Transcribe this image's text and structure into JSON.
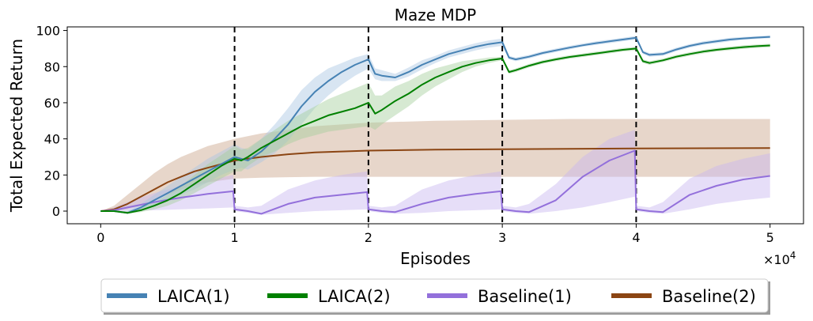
{
  "chart_data": {
    "type": "line",
    "title": "Maze MDP",
    "xlabel": "Episodes",
    "ylabel": "Total Expected Return",
    "x_multiplier_label": "×10",
    "x_multiplier_exp": "4",
    "xlim": [
      -0.25,
      5.25
    ],
    "ylim": [
      -7,
      102
    ],
    "xticks": [
      0,
      1,
      2,
      3,
      4,
      5
    ],
    "xtick_labels": [
      "0",
      "1",
      "2",
      "3",
      "4",
      "5"
    ],
    "yticks": [
      0,
      20,
      40,
      60,
      80,
      100
    ],
    "ytick_labels": [
      "0",
      "20",
      "40",
      "60",
      "80",
      "100"
    ],
    "vlines": [
      1,
      2,
      3,
      4
    ],
    "grid": false,
    "legend_position": "bottom-center-outside",
    "series": [
      {
        "name": "Baseline(2)",
        "color": "#8b4513",
        "band_color": "#c9a48a",
        "x": [
          0,
          0.1,
          0.2,
          0.3,
          0.4,
          0.5,
          0.6,
          0.7,
          0.8,
          0.9,
          1.0,
          1.2,
          1.4,
          1.6,
          1.8,
          2.0,
          2.5,
          3.0,
          3.5,
          4.0,
          4.5,
          5.0
        ],
        "y": [
          0,
          1,
          4,
          8,
          12,
          16,
          19,
          22,
          24,
          26,
          28,
          30,
          31.5,
          32.5,
          33,
          33.5,
          34,
          34.3,
          34.5,
          34.7,
          34.8,
          34.9
        ],
        "lower": [
          0,
          0,
          1,
          3,
          6,
          9,
          12,
          14,
          16,
          17,
          18,
          18.5,
          18.8,
          19,
          19,
          19,
          19,
          19,
          19,
          19,
          19,
          19
        ],
        "upper": [
          0,
          3,
          9,
          15,
          21,
          26,
          30,
          33,
          36,
          38,
          40,
          43,
          45,
          47,
          48,
          49,
          50,
          50.5,
          51,
          51,
          51,
          51
        ]
      },
      {
        "name": "Baseline(1)",
        "color": "#9370db",
        "band_color": "#c8b6f0",
        "x": [
          0,
          0.1,
          0.2,
          0.4,
          0.6,
          0.8,
          0.99,
          1.0,
          1.1,
          1.2,
          1.4,
          1.6,
          1.8,
          1.99,
          2.0,
          2.1,
          2.2,
          2.4,
          2.6,
          2.8,
          2.99,
          3.0,
          3.1,
          3.2,
          3.4,
          3.6,
          3.8,
          3.99,
          4.0,
          4.1,
          4.2,
          4.4,
          4.6,
          4.8,
          5.0
        ],
        "y": [
          0,
          0.5,
          2,
          5,
          7.5,
          9.5,
          11,
          1,
          0,
          -1.5,
          4,
          7.5,
          9,
          10.5,
          1,
          0,
          -0.5,
          4,
          7.5,
          9.5,
          11,
          1,
          0,
          -0.5,
          6,
          19,
          28,
          33.5,
          1,
          0,
          -0.5,
          9,
          14,
          17.5,
          19.5
        ],
        "lower": [
          0,
          0,
          0,
          0.5,
          1,
          1.5,
          2,
          0,
          -1,
          -2,
          -1,
          0,
          0.5,
          1,
          0,
          -1,
          -1.5,
          -1,
          0,
          0.5,
          1,
          0,
          -1,
          -1.5,
          0,
          2,
          5,
          8,
          0,
          -1,
          -1.5,
          1,
          4,
          6,
          7.5
        ],
        "upper": [
          0,
          2,
          5,
          10,
          14,
          17,
          20,
          3,
          2,
          3,
          12,
          17,
          20,
          22,
          3,
          2,
          3,
          12,
          17,
          20,
          22,
          3,
          2,
          4,
          15,
          30,
          40,
          45,
          3,
          2,
          5,
          18,
          25,
          29,
          32
        ]
      },
      {
        "name": "LAICA(1)",
        "color": "#4682b4",
        "band_color": "#a9c6e3",
        "x": [
          0,
          0.1,
          0.2,
          0.3,
          0.4,
          0.5,
          0.6,
          0.7,
          0.8,
          0.9,
          1.0,
          1.05,
          1.1,
          1.2,
          1.3,
          1.4,
          1.5,
          1.6,
          1.7,
          1.8,
          1.9,
          2.0,
          2.05,
          2.1,
          2.2,
          2.3,
          2.4,
          2.5,
          2.6,
          2.7,
          2.8,
          2.9,
          3.0,
          3.05,
          3.1,
          3.2,
          3.3,
          3.4,
          3.5,
          3.6,
          3.7,
          3.8,
          3.9,
          4.0,
          4.05,
          4.1,
          4.2,
          4.3,
          4.4,
          4.5,
          4.6,
          4.7,
          4.8,
          4.9,
          5.0
        ],
        "y": [
          0,
          0,
          -1,
          2,
          6,
          10,
          14,
          18,
          22,
          26,
          30,
          29,
          28,
          33,
          40,
          48,
          58,
          66,
          72,
          77,
          81,
          84,
          76,
          75,
          74,
          77,
          81,
          84,
          87,
          89,
          91,
          92.5,
          93.5,
          85,
          84,
          85.5,
          87.5,
          89,
          90.5,
          91.8,
          93,
          94,
          95,
          96,
          88,
          86.5,
          87,
          89.5,
          91.5,
          93,
          94,
          95,
          95.6,
          96.1,
          96.5
        ],
        "lower": [
          0,
          0,
          -1.5,
          0,
          3,
          6,
          9,
          12,
          16,
          20,
          23,
          24,
          23,
          27,
          32,
          39,
          48,
          57,
          64,
          70,
          75,
          79,
          73,
          72,
          72,
          74.5,
          78.5,
          82,
          85,
          87,
          89,
          90.5,
          91.5,
          84,
          83,
          84.5,
          86.5,
          88,
          89.5,
          91,
          92,
          93,
          94,
          95,
          87,
          85.5,
          86,
          88.5,
          90.5,
          92,
          93,
          94,
          94.8,
          95.3,
          95.7
        ],
        "upper": [
          0,
          0,
          0,
          4,
          9,
          14,
          19,
          24,
          29,
          33,
          37,
          35,
          34,
          40,
          48,
          57,
          67,
          74,
          79,
          82,
          85,
          87,
          79,
          78,
          76,
          79.5,
          83.5,
          86,
          89,
          91,
          93,
          94.5,
          95.5,
          86,
          85,
          86.5,
          88.5,
          90,
          91.5,
          92.8,
          94,
          95,
          96,
          97,
          89,
          87.5,
          88,
          90.5,
          92.5,
          94,
          95,
          96,
          96.4,
          96.9,
          97.3
        ]
      },
      {
        "name": "LAICA(2)",
        "color": "#008000",
        "band_color": "#a3cf9c",
        "x": [
          0,
          0.1,
          0.2,
          0.3,
          0.4,
          0.5,
          0.6,
          0.7,
          0.8,
          0.9,
          1.0,
          1.05,
          1.1,
          1.2,
          1.3,
          1.4,
          1.5,
          1.6,
          1.7,
          1.8,
          1.9,
          2.0,
          2.05,
          2.1,
          2.2,
          2.3,
          2.4,
          2.5,
          2.6,
          2.7,
          2.8,
          2.9,
          3.0,
          3.05,
          3.1,
          3.2,
          3.3,
          3.4,
          3.5,
          3.6,
          3.7,
          3.8,
          3.9,
          4.0,
          4.05,
          4.1,
          4.2,
          4.3,
          4.4,
          4.5,
          4.6,
          4.7,
          4.8,
          4.9,
          5.0
        ],
        "y": [
          0,
          0,
          -1,
          0.5,
          3,
          6,
          10,
          15,
          20,
          25,
          29,
          28,
          30,
          35,
          39,
          43,
          47,
          50,
          53,
          55,
          57,
          60,
          54,
          56,
          61,
          65,
          70,
          74,
          77,
          80,
          82,
          83.5,
          84.5,
          77,
          78,
          80.5,
          82.5,
          84,
          85.3,
          86.3,
          87.3,
          88.3,
          89.3,
          90,
          83,
          82,
          83.5,
          85.5,
          87,
          88.3,
          89.3,
          90.1,
          90.8,
          91.3,
          91.7
        ],
        "lower": [
          0,
          0,
          -1.5,
          -0.5,
          1,
          3,
          6,
          10,
          14,
          18,
          22,
          22,
          25,
          30,
          33,
          37,
          40,
          42,
          44,
          45,
          46,
          47,
          45,
          48,
          53,
          58,
          64,
          69,
          73,
          77,
          80,
          82,
          83.5,
          76,
          77,
          79.5,
          81.5,
          83,
          84.3,
          85.3,
          86.3,
          87.3,
          88.3,
          89,
          82,
          81,
          82.5,
          84.5,
          86,
          87.3,
          88.3,
          89.1,
          89.8,
          90.3,
          90.7
        ],
        "upper": [
          0,
          0,
          0,
          2,
          5,
          9,
          14,
          20,
          26,
          31,
          36,
          34,
          35,
          40,
          45,
          50,
          54,
          58,
          62,
          65,
          68,
          71,
          64,
          64,
          69,
          72,
          76,
          79,
          81,
          83,
          84,
          85,
          85.5,
          78,
          79,
          81.5,
          83.5,
          85,
          86.3,
          87.3,
          88.3,
          89.3,
          90.3,
          91,
          84,
          83,
          84.5,
          86.5,
          88,
          89.3,
          90.3,
          91.1,
          91.8,
          92.3,
          92.7
        ]
      }
    ],
    "legend_order": [
      "LAICA(1)",
      "LAICA(2)",
      "Baseline(1)",
      "Baseline(2)"
    ]
  }
}
